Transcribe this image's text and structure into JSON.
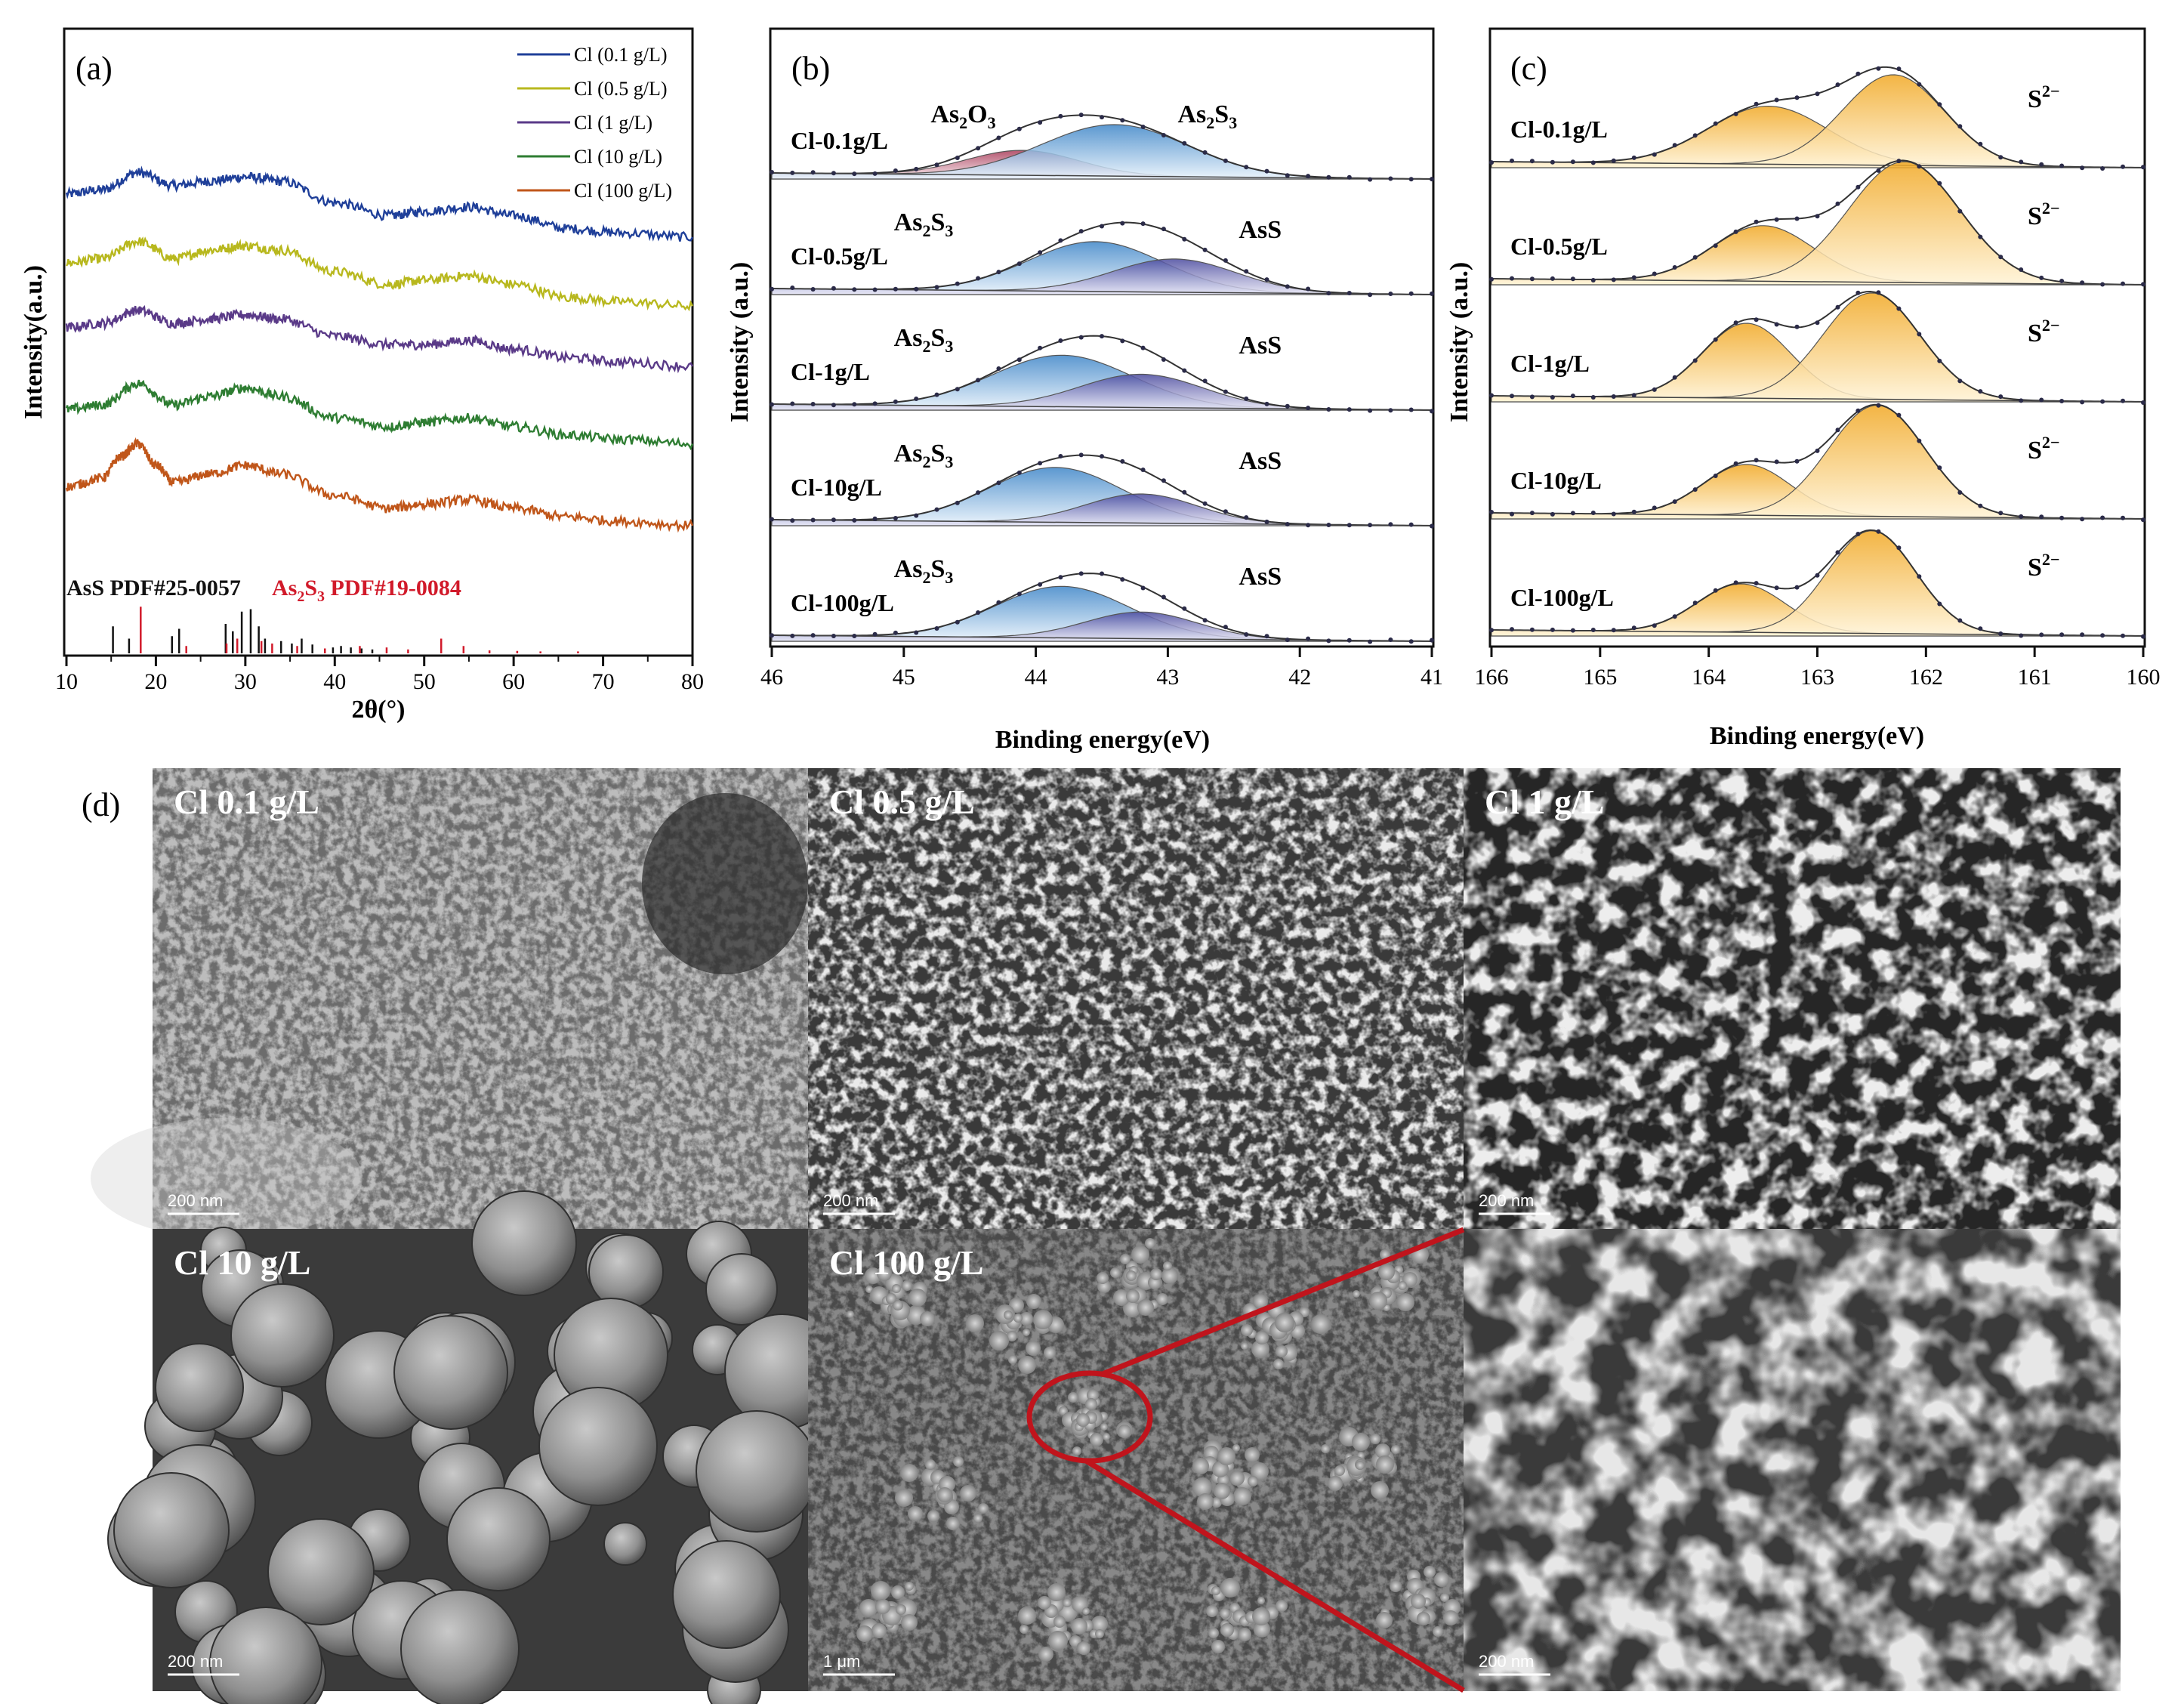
{
  "panel_labels": {
    "a": "(a)",
    "b": "(b)",
    "c": "(c)",
    "d": "(d)"
  },
  "chart_data": [
    {
      "id": "a",
      "type": "line",
      "title": "",
      "xlabel": "2θ(°)",
      "ylabel": "Intensity(a.u.)",
      "xlim": [
        10,
        80
      ],
      "xticks": [
        "10",
        "20",
        "30",
        "40",
        "50",
        "60",
        "70",
        "80"
      ],
      "legend_position": "top-right",
      "series": [
        {
          "name": "Cl (0.1 g/L)",
          "color": "#1f3f99",
          "x": [
            10,
            14,
            18,
            22,
            26,
            30,
            34,
            40,
            46,
            50,
            55,
            60,
            66,
            72,
            80
          ],
          "y": [
            0.9,
            0.91,
            0.95,
            0.92,
            0.93,
            0.94,
            0.93,
            0.88,
            0.85,
            0.86,
            0.87,
            0.85,
            0.82,
            0.81,
            0.8
          ]
        },
        {
          "name": "Cl (0.5 g/L)",
          "color": "#b8b81e",
          "x": [
            10,
            14,
            18,
            22,
            26,
            30,
            34,
            40,
            46,
            50,
            55,
            60,
            66,
            72,
            80
          ],
          "y": [
            0.74,
            0.75,
            0.79,
            0.75,
            0.77,
            0.78,
            0.77,
            0.72,
            0.69,
            0.7,
            0.71,
            0.69,
            0.66,
            0.65,
            0.64
          ]
        },
        {
          "name": "Cl (1 g/L)",
          "color": "#5a3a88",
          "x": [
            10,
            14,
            18,
            22,
            26,
            30,
            34,
            40,
            46,
            50,
            55,
            60,
            66,
            72,
            80
          ],
          "y": [
            0.59,
            0.6,
            0.63,
            0.6,
            0.61,
            0.62,
            0.61,
            0.57,
            0.55,
            0.55,
            0.56,
            0.54,
            0.52,
            0.51,
            0.5
          ]
        },
        {
          "name": "Cl (10 g/L)",
          "color": "#2e7d32",
          "x": [
            10,
            14,
            18,
            22,
            26,
            30,
            34,
            40,
            46,
            50,
            55,
            60,
            66,
            72,
            80
          ],
          "y": [
            0.4,
            0.41,
            0.46,
            0.41,
            0.43,
            0.45,
            0.43,
            0.38,
            0.36,
            0.37,
            0.38,
            0.36,
            0.34,
            0.33,
            0.32
          ]
        },
        {
          "name": "Cl (100 g/L)",
          "color": "#c0561a",
          "x": [
            10,
            14,
            16,
            18,
            20,
            22,
            26,
            30,
            34,
            40,
            46,
            50,
            55,
            60,
            66,
            72,
            80
          ],
          "y": [
            0.22,
            0.24,
            0.29,
            0.32,
            0.27,
            0.23,
            0.25,
            0.27,
            0.25,
            0.2,
            0.17,
            0.18,
            0.19,
            0.17,
            0.15,
            0.14,
            0.13
          ]
        }
      ],
      "reference_labels": {
        "ref1": "AsS PDF#25-0057",
        "ref2_prefix": "As",
        "ref2_sub1": "2",
        "ref2_mid": "S",
        "ref2_sub2": "3",
        "ref2_suffix": " PDF#19-0084"
      },
      "reference_colors": {
        "ref1": "#111111",
        "ref2": "#d11a2a"
      },
      "reference_peaks": {
        "AsS": [
          {
            "x": 15.2,
            "h": 0.55
          },
          {
            "x": 17.0,
            "h": 0.3
          },
          {
            "x": 21.8,
            "h": 0.35
          },
          {
            "x": 22.6,
            "h": 0.5
          },
          {
            "x": 27.8,
            "h": 0.6
          },
          {
            "x": 28.6,
            "h": 0.45
          },
          {
            "x": 29.6,
            "h": 0.85
          },
          {
            "x": 30.6,
            "h": 0.9
          },
          {
            "x": 31.5,
            "h": 0.55
          },
          {
            "x": 32.2,
            "h": 0.3
          },
          {
            "x": 34.0,
            "h": 0.25
          },
          {
            "x": 35.2,
            "h": 0.2
          },
          {
            "x": 36.3,
            "h": 0.3
          },
          {
            "x": 37.5,
            "h": 0.18
          },
          {
            "x": 39.8,
            "h": 0.12
          },
          {
            "x": 40.7,
            "h": 0.15
          },
          {
            "x": 41.8,
            "h": 0.12
          },
          {
            "x": 43.0,
            "h": 0.1
          },
          {
            "x": 44.2,
            "h": 0.08
          }
        ],
        "As2S3": [
          {
            "x": 18.3,
            "h": 0.95
          },
          {
            "x": 23.4,
            "h": 0.15
          },
          {
            "x": 27.9,
            "h": 0.2
          },
          {
            "x": 29.1,
            "h": 0.3
          },
          {
            "x": 31.8,
            "h": 0.25
          },
          {
            "x": 33.0,
            "h": 0.2
          },
          {
            "x": 35.8,
            "h": 0.15
          },
          {
            "x": 38.9,
            "h": 0.1
          },
          {
            "x": 42.8,
            "h": 0.15
          },
          {
            "x": 45.8,
            "h": 0.12
          },
          {
            "x": 48.2,
            "h": 0.08
          },
          {
            "x": 51.9,
            "h": 0.3
          },
          {
            "x": 54.4,
            "h": 0.15
          },
          {
            "x": 57.3,
            "h": 0.06
          },
          {
            "x": 60.4,
            "h": 0.05
          },
          {
            "x": 63.0,
            "h": 0.04
          },
          {
            "x": 67.2,
            "h": 0.04
          }
        ]
      }
    },
    {
      "id": "b",
      "type": "area",
      "xlabel": "Binding energy(eV)",
      "ylabel": "Intensity (a.u.)",
      "xlim": [
        46,
        41
      ],
      "xticks": [
        "46",
        "45",
        "44",
        "43",
        "42",
        "41"
      ],
      "spectra": [
        {
          "sample": "Cl-0.1g/L",
          "offset": 4,
          "components": [
            {
              "label": "As2O3",
              "center": 44.1,
              "fwhm": 1.0,
              "height": 0.3,
              "color": "#b04060"
            },
            {
              "label": "As2S3",
              "center": 43.4,
              "fwhm": 1.3,
              "height": 0.62,
              "color": "#4f8fc8"
            }
          ]
        },
        {
          "sample": "Cl-0.5g/L",
          "offset": 3,
          "components": [
            {
              "label": "As2S3",
              "center": 43.55,
              "fwhm": 1.2,
              "height": 0.6,
              "color": "#4f8fc8"
            },
            {
              "label": "AsS",
              "center": 42.95,
              "fwhm": 1.1,
              "height": 0.4,
              "color": "#5a56a8"
            }
          ]
        },
        {
          "sample": "Cl-1g/L",
          "offset": 2,
          "components": [
            {
              "label": "As2S3",
              "center": 43.8,
              "fwhm": 1.25,
              "height": 0.62,
              "color": "#4f8fc8"
            },
            {
              "label": "AsS",
              "center": 43.2,
              "fwhm": 1.1,
              "height": 0.4,
              "color": "#5a56a8"
            }
          ]
        },
        {
          "sample": "Cl-10g/L",
          "offset": 1,
          "components": [
            {
              "label": "As2S3",
              "center": 43.85,
              "fwhm": 1.2,
              "height": 0.66,
              "color": "#4f8fc8"
            },
            {
              "label": "AsS",
              "center": 43.2,
              "fwhm": 1.0,
              "height": 0.35,
              "color": "#5a56a8"
            }
          ]
        },
        {
          "sample": "Cl-100g/L",
          "offset": 0,
          "components": [
            {
              "label": "As2S3",
              "center": 43.8,
              "fwhm": 1.2,
              "height": 0.62,
              "color": "#4f8fc8"
            },
            {
              "label": "AsS",
              "center": 43.2,
              "fwhm": 1.0,
              "height": 0.32,
              "color": "#5a56a8"
            }
          ]
        }
      ]
    },
    {
      "id": "c",
      "type": "area",
      "xlabel": "Binding energy(eV)",
      "ylabel": "Intensity (a.u.)",
      "xlim": [
        166,
        160
      ],
      "xticks": [
        "166",
        "165",
        "164",
        "163",
        "162",
        "161",
        "160"
      ],
      "component_label_main": "S",
      "component_label_sup": "2−",
      "spectra": [
        {
          "sample": "Cl-0.1g/L",
          "offset": 4,
          "components": [
            {
              "center": 163.45,
              "fwhm": 1.3,
              "height": 0.48,
              "color": "#f0b030"
            },
            {
              "center": 162.3,
              "fwhm": 1.1,
              "height": 0.75,
              "color": "#f0b030"
            }
          ]
        },
        {
          "sample": "Cl-0.5g/L",
          "offset": 3,
          "components": [
            {
              "center": 163.5,
              "fwhm": 1.1,
              "height": 0.46,
              "color": "#f0b030"
            },
            {
              "center": 162.2,
              "fwhm": 1.2,
              "height": 1.0,
              "color": "#f0b030"
            }
          ]
        },
        {
          "sample": "Cl-1g/L",
          "offset": 2,
          "components": [
            {
              "center": 163.65,
              "fwhm": 0.95,
              "height": 0.62,
              "color": "#f0b030"
            },
            {
              "center": 162.5,
              "fwhm": 1.05,
              "height": 0.88,
              "color": "#f0b030"
            }
          ]
        },
        {
          "sample": "Cl-10g/L",
          "offset": 1,
          "components": [
            {
              "center": 163.65,
              "fwhm": 0.95,
              "height": 0.42,
              "color": "#f0b030"
            },
            {
              "center": 162.45,
              "fwhm": 1.05,
              "height": 0.92,
              "color": "#f0b030"
            }
          ]
        },
        {
          "sample": "Cl-100g/L",
          "offset": 0,
          "components": [
            {
              "center": 163.7,
              "fwhm": 0.95,
              "height": 0.4,
              "color": "#f0b030"
            },
            {
              "center": 162.5,
              "fwhm": 0.95,
              "height": 0.85,
              "color": "#f0b030"
            }
          ]
        }
      ]
    }
  ],
  "sem_panels": [
    {
      "label": "Cl 0.1 g/L",
      "scale_bar": "200 nm",
      "texture": "fine-aggregate"
    },
    {
      "label": "Cl 0.5 g/L",
      "scale_bar": "200 nm",
      "texture": "fine-porous"
    },
    {
      "label": "Cl 1 g/L",
      "scale_bar": "200 nm",
      "texture": "coarse-porous"
    },
    {
      "label": "Cl 10 g/L",
      "scale_bar": "200 nm",
      "texture": "spheres"
    },
    {
      "label": "Cl 100 g/L",
      "scale_bar": "1 μm",
      "texture": "clusters"
    },
    {
      "label": "",
      "scale_bar": "200 nm",
      "texture": "fused-zoom"
    }
  ],
  "zoom_indicator_color": "#c0141c"
}
